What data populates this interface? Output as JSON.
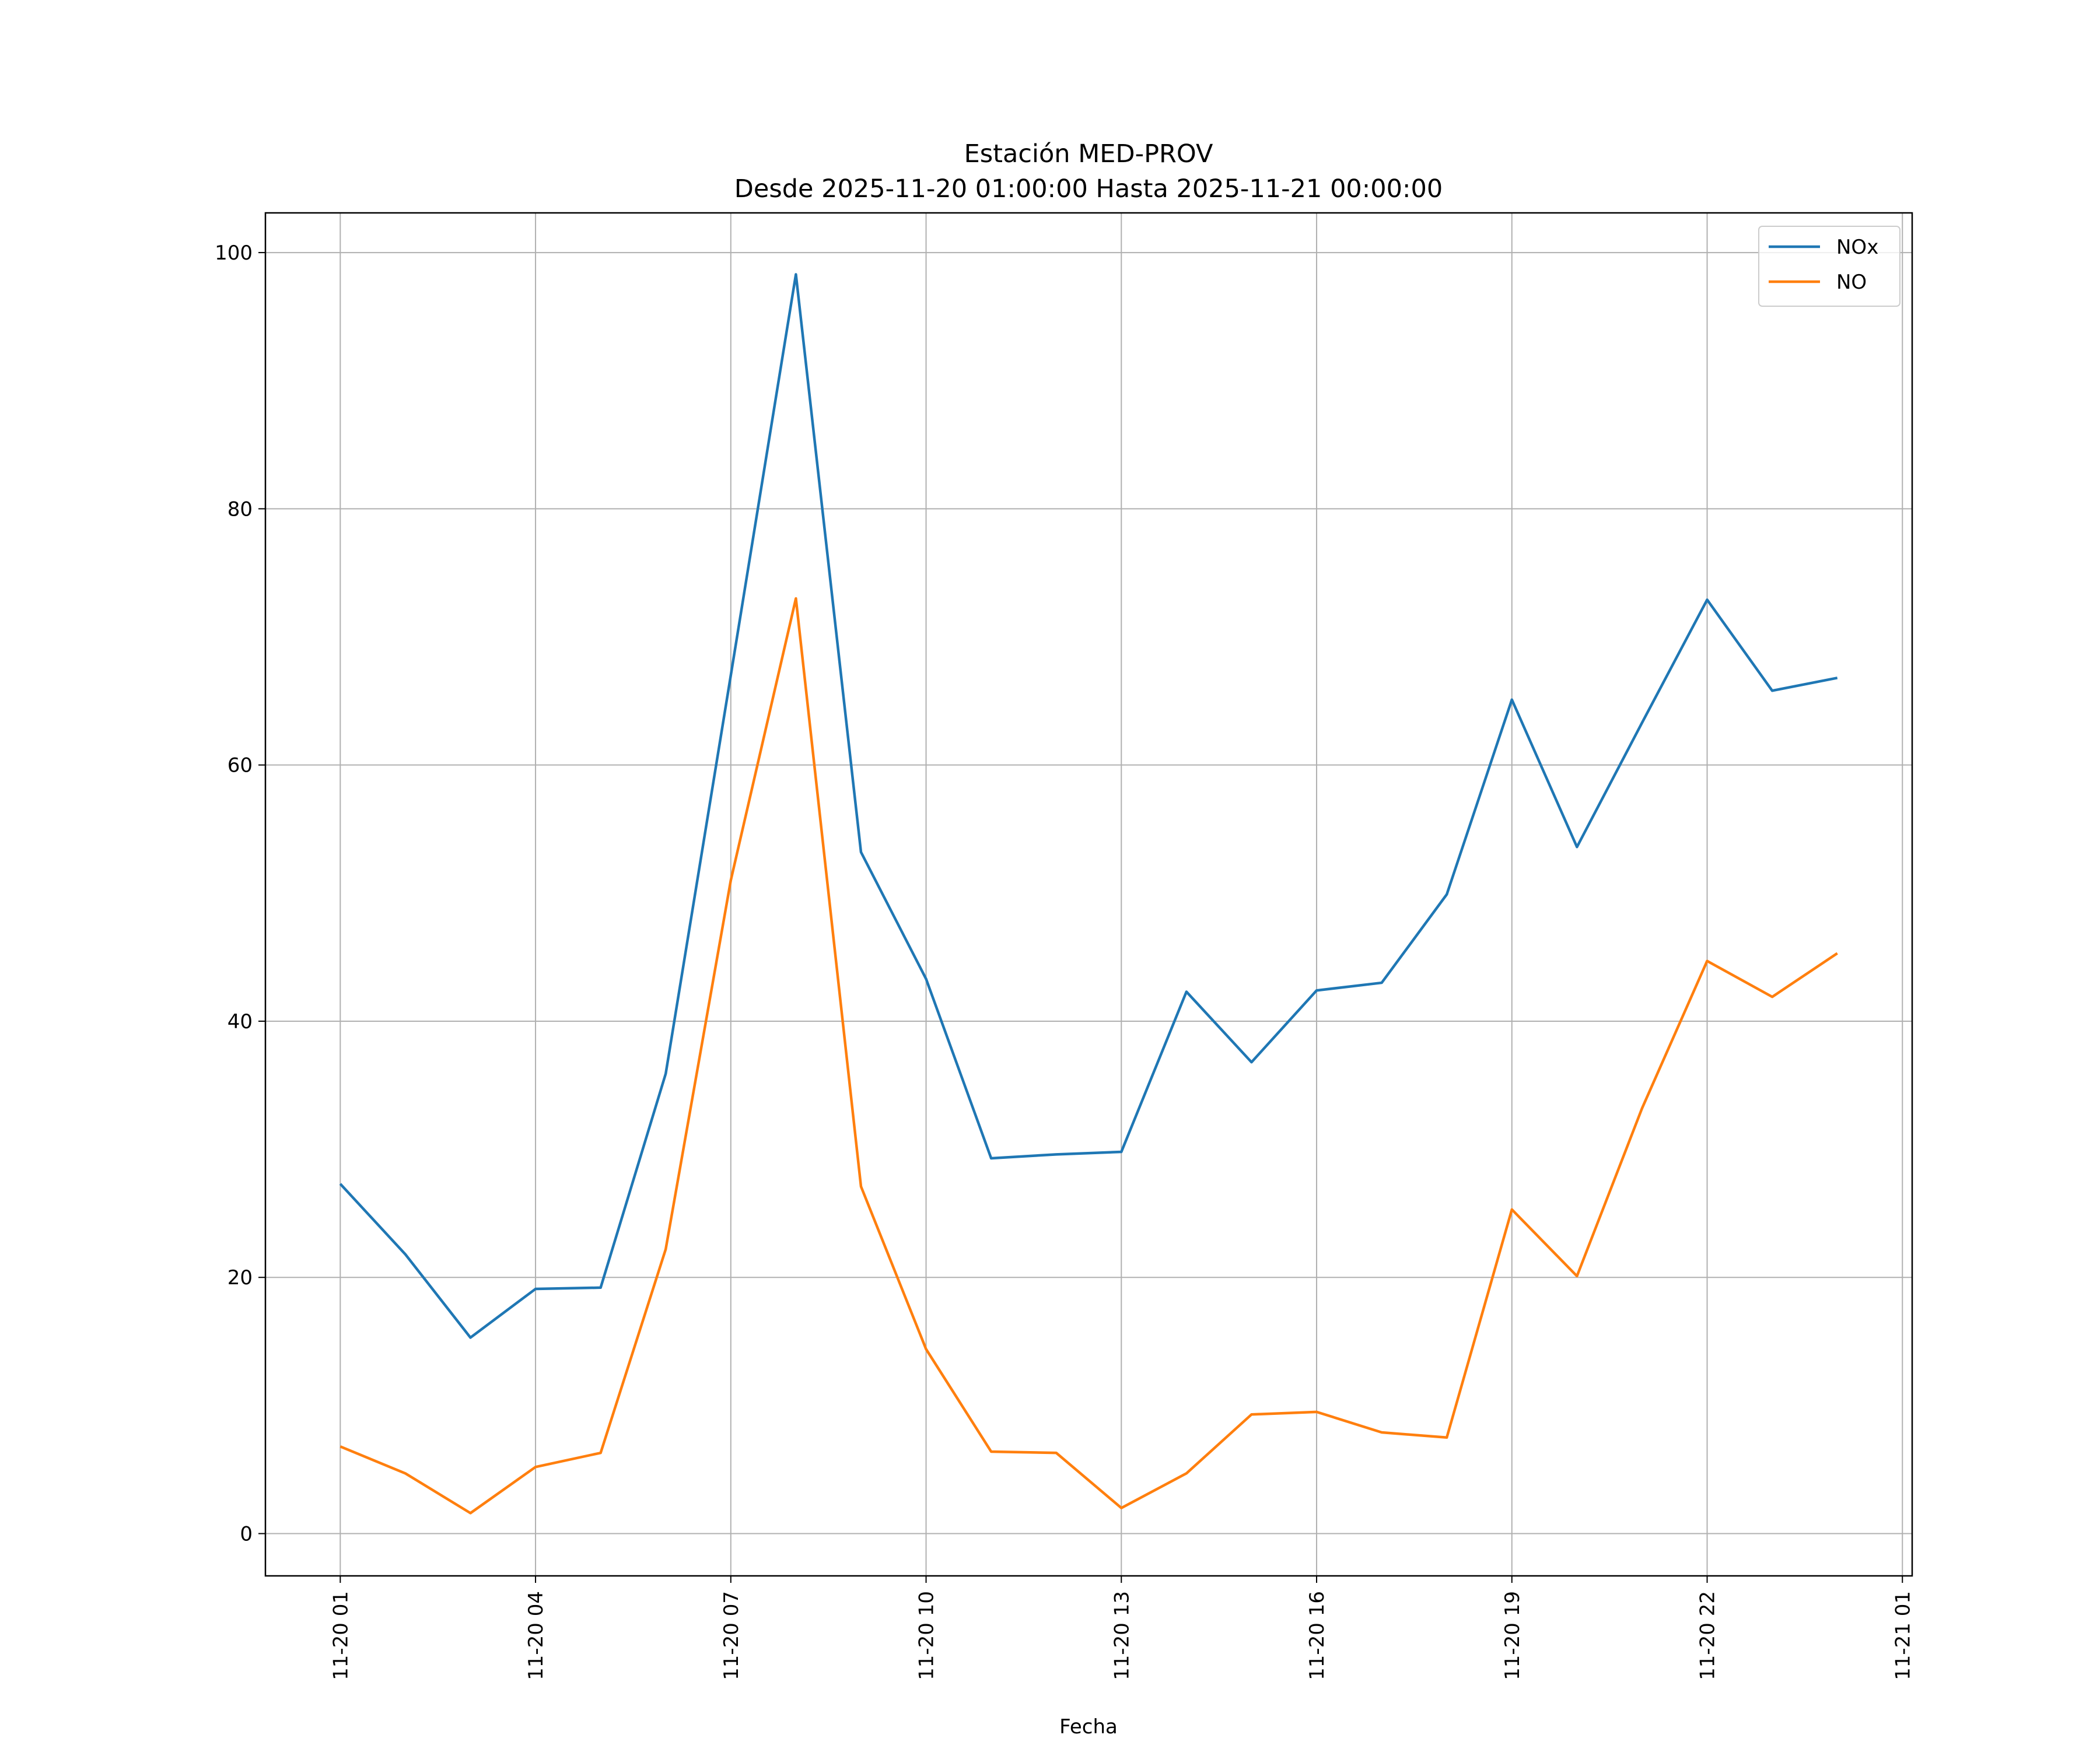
{
  "chart_data": {
    "type": "line",
    "title": "Estación MED-PROV",
    "subtitle": "Desde 2025-11-20 01:00:00 Hasta 2025-11-21 00:00:00",
    "xlabel": "Fecha",
    "ylabel": "",
    "x": [
      "11-20 01",
      "11-20 02",
      "11-20 03",
      "11-20 04",
      "11-20 05",
      "11-20 06",
      "11-20 07",
      "11-20 08",
      "11-20 09",
      "11-20 10",
      "11-20 11",
      "11-20 12",
      "11-20 13",
      "11-20 14",
      "11-20 15",
      "11-20 16",
      "11-20 17",
      "11-20 18",
      "11-20 19",
      "11-20 20",
      "11-20 21",
      "11-20 22",
      "11-20 23",
      "11-21 00"
    ],
    "x_hours": [
      0,
      1,
      2,
      3,
      4,
      5,
      6,
      7,
      8,
      9,
      10,
      11,
      12,
      13,
      14,
      15,
      16,
      17,
      18,
      19,
      20,
      21,
      22,
      23
    ],
    "xtick_labels": [
      "11-20 01",
      "11-20 04",
      "11-20 07",
      "11-20 10",
      "11-20 13",
      "11-20 16",
      "11-20 19",
      "11-20 22",
      "11-21 01"
    ],
    "xtick_hours": [
      0,
      3,
      6,
      9,
      12,
      15,
      18,
      21,
      24
    ],
    "xlim_hours": [
      -1.15,
      24.15
    ],
    "ylim": [
      -3.3,
      103.1
    ],
    "yticks": [
      0,
      20,
      40,
      60,
      80,
      100
    ],
    "grid": true,
    "legend_position": "top-right",
    "series": [
      {
        "name": "NOx",
        "color": "#1f77b4",
        "values": [
          27.3,
          21.8,
          15.3,
          19.1,
          19.2,
          35.9,
          67.0,
          98.3,
          53.2,
          43.3,
          29.3,
          29.6,
          29.8,
          42.3,
          36.8,
          42.4,
          43.0,
          49.9,
          65.1,
          53.6,
          63.3,
          72.9,
          65.8,
          66.8
        ]
      },
      {
        "name": "NO",
        "color": "#ff7f0e",
        "values": [
          6.8,
          4.7,
          1.6,
          5.2,
          6.3,
          22.2,
          51.0,
          73.0,
          27.1,
          14.4,
          6.4,
          6.3,
          2.0,
          4.7,
          9.3,
          9.5,
          7.9,
          7.5,
          25.3,
          20.1,
          33.2,
          44.7,
          41.9,
          45.3
        ]
      }
    ]
  }
}
